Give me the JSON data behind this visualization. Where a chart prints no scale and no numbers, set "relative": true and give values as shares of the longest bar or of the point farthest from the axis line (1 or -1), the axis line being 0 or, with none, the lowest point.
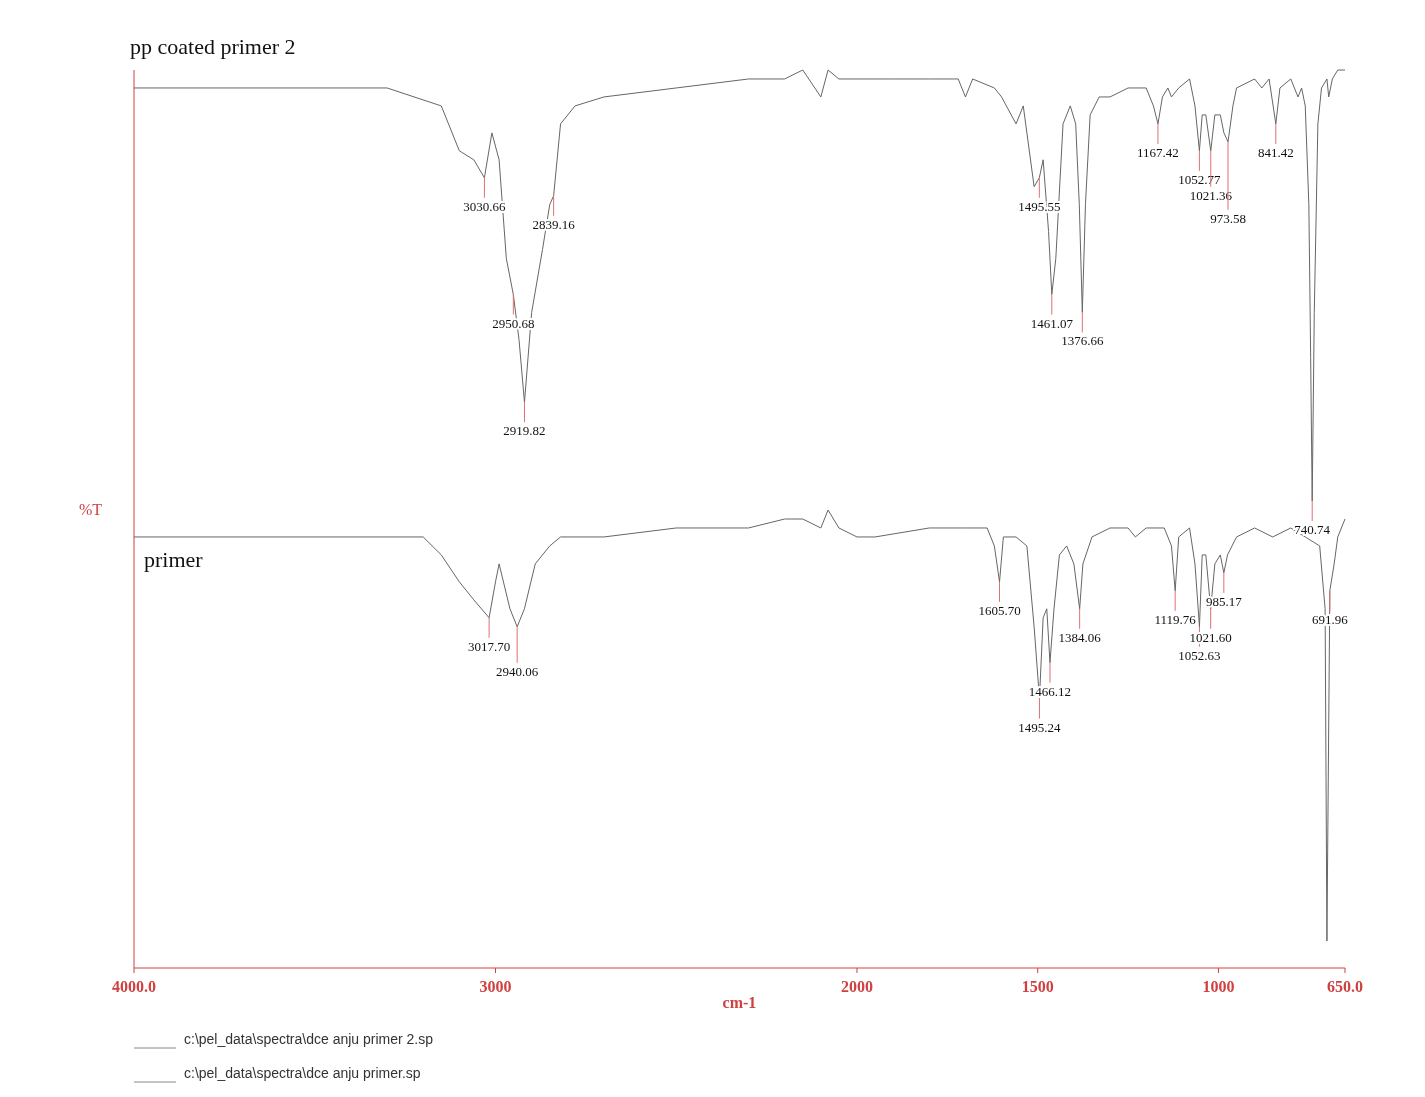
{
  "chart_data": {
    "type": "line",
    "relative": true,
    "xlabel": "cm-1",
    "ylabel": "%T",
    "xlim": [
      4000,
      650
    ],
    "xticks": [
      {
        "value": 4000,
        "label": "4000.0"
      },
      3000,
      2000,
      1500,
      1000,
      {
        "value": 650,
        "label": "650.0"
      }
    ],
    "grid": false,
    "marker": "none",
    "line_style": "solid",
    "series": [
      {
        "name": "pp coated primer 2",
        "color": "#666666",
        "x": [
          4000,
          3300,
          3150,
          3100,
          3060,
          3030.66,
          3010,
          2990,
          2970,
          2950.68,
          2935,
          2919.82,
          2900,
          2870,
          2850,
          2839.16,
          2820,
          2780,
          2700,
          2500,
          2300,
          2200,
          2150,
          2100,
          2080,
          2050,
          2000,
          1900,
          1800,
          1720,
          1700,
          1680,
          1620,
          1600,
          1560,
          1540,
          1510,
          1495.55,
          1485,
          1470,
          1461.07,
          1450,
          1430,
          1410,
          1395,
          1385,
          1376.66,
          1368,
          1355,
          1330,
          1300,
          1250,
          1200,
          1180,
          1167.42,
          1155,
          1140,
          1130,
          1110,
          1080,
          1065,
          1052.77,
          1045,
          1035,
          1021.36,
          1010,
          995,
          985,
          973.58,
          960,
          950,
          900,
          880,
          860,
          841.42,
          830,
          800,
          780,
          770,
          760,
          750,
          745,
          740.74,
          735,
          725,
          715,
          700,
          695,
          685,
          670,
          650
        ],
        "values": [
          0.98,
          0.98,
          0.96,
          0.91,
          0.9,
          0.88,
          0.93,
          0.9,
          0.79,
          0.75,
          0.7,
          0.63,
          0.73,
          0.8,
          0.85,
          0.86,
          0.94,
          0.96,
          0.97,
          0.98,
          0.99,
          0.99,
          1.0,
          0.97,
          1.0,
          0.99,
          0.99,
          0.99,
          0.99,
          0.99,
          0.97,
          0.99,
          0.98,
          0.97,
          0.94,
          0.96,
          0.87,
          0.88,
          0.9,
          0.82,
          0.75,
          0.79,
          0.94,
          0.96,
          0.94,
          0.85,
          0.73,
          0.85,
          0.95,
          0.97,
          0.97,
          0.98,
          0.98,
          0.96,
          0.94,
          0.97,
          0.98,
          0.97,
          0.98,
          0.99,
          0.96,
          0.91,
          0.95,
          0.95,
          0.91,
          0.95,
          0.95,
          0.93,
          0.92,
          0.96,
          0.98,
          0.99,
          0.98,
          0.99,
          0.94,
          0.98,
          0.99,
          0.97,
          0.98,
          0.96,
          0.85,
          0.68,
          0.52,
          0.73,
          0.94,
          0.98,
          0.99,
          0.97,
          0.99,
          1.0,
          1.0
        ]
      },
      {
        "name": "primer",
        "color": "#666666",
        "x": [
          4000,
          3200,
          3150,
          3100,
          3060,
          3017.7,
          3000,
          2990,
          2960,
          2940.06,
          2920,
          2890,
          2850,
          2820,
          2700,
          2500,
          2300,
          2200,
          2150,
          2100,
          2080,
          2050,
          2000,
          1950,
          1800,
          1700,
          1640,
          1620,
          1605.7,
          1595,
          1560,
          1530,
          1510,
          1495.24,
          1485,
          1475,
          1466.12,
          1455,
          1440,
          1420,
          1400,
          1384.06,
          1375,
          1350,
          1300,
          1250,
          1230,
          1200,
          1150,
          1130,
          1119.76,
          1110,
          1080,
          1065,
          1052.63,
          1045,
          1035,
          1021.6,
          1010,
          995,
          985.17,
          975,
          950,
          900,
          850,
          800,
          760,
          720,
          705,
          700,
          691.96,
          680,
          670,
          650
        ],
        "values": [
          0.48,
          0.48,
          0.46,
          0.43,
          0.41,
          0.39,
          0.43,
          0.45,
          0.4,
          0.38,
          0.4,
          0.45,
          0.47,
          0.48,
          0.48,
          0.49,
          0.49,
          0.5,
          0.5,
          0.49,
          0.51,
          0.49,
          0.48,
          0.48,
          0.49,
          0.49,
          0.49,
          0.47,
          0.43,
          0.48,
          0.48,
          0.47,
          0.38,
          0.3,
          0.39,
          0.4,
          0.34,
          0.4,
          0.46,
          0.47,
          0.45,
          0.4,
          0.45,
          0.48,
          0.49,
          0.49,
          0.48,
          0.49,
          0.49,
          0.47,
          0.42,
          0.48,
          0.49,
          0.45,
          0.38,
          0.46,
          0.46,
          0.4,
          0.45,
          0.46,
          0.44,
          0.46,
          0.48,
          0.49,
          0.48,
          0.49,
          0.48,
          0.47,
          0.4,
          0.03,
          0.42,
          0.45,
          0.48,
          0.5
        ]
      }
    ],
    "annotations": [
      {
        "text": "3030.66",
        "x": 3030.66,
        "y": 0.88
      },
      {
        "text": "2950.68",
        "x": 2950.68,
        "y": 0.75
      },
      {
        "text": "2919.82",
        "x": 2919.82,
        "y": 0.63
      },
      {
        "text": "2839.16",
        "x": 2839.16,
        "y": 0.86
      },
      {
        "text": "1495.55",
        "x": 1495.55,
        "y": 0.88
      },
      {
        "text": "1461.07",
        "x": 1461.07,
        "y": 0.75
      },
      {
        "text": "1376.66",
        "x": 1376.66,
        "y": 0.73
      },
      {
        "text": "1167.42",
        "x": 1167.42,
        "y": 0.94
      },
      {
        "text": "1052.77",
        "x": 1052.77,
        "y": 0.91
      },
      {
        "text": "1021.36",
        "x": 1021.36,
        "y": 0.91
      },
      {
        "text": "973.58",
        "x": 973.58,
        "y": 0.92
      },
      {
        "text": "841.42",
        "x": 841.42,
        "y": 0.94
      },
      {
        "text": "740.74",
        "x": 740.74,
        "y": 0.52
      },
      {
        "text": "3017.70",
        "x": 3017.7,
        "y": 0.39
      },
      {
        "text": "2940.06",
        "x": 2940.06,
        "y": 0.38
      },
      {
        "text": "1605.70",
        "x": 1605.7,
        "y": 0.43
      },
      {
        "text": "1495.24",
        "x": 1495.24,
        "y": 0.3
      },
      {
        "text": "1466.12",
        "x": 1466.12,
        "y": 0.34
      },
      {
        "text": "1384.06",
        "x": 1384.06,
        "y": 0.4
      },
      {
        "text": "1119.76",
        "x": 1119.76,
        "y": 0.42
      },
      {
        "text": "1052.63",
        "x": 1052.63,
        "y": 0.38
      },
      {
        "text": "1021.60",
        "x": 1021.6,
        "y": 0.4
      },
      {
        "text": "985.17",
        "x": 985.17,
        "y": 0.44
      },
      {
        "text": "691.96",
        "x": 691.96,
        "y": 0.42
      },
      "c:\\pel_data\\spectra\\dce anju primer 2.sp",
      "c:\\pel_data\\spectra\\dce anju primer.sp"
    ]
  }
}
